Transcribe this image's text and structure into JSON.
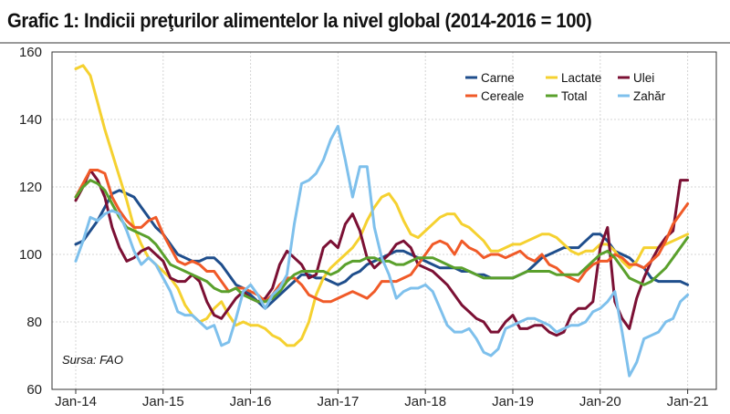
{
  "title": "Grafic 1: Indicii preţurilor alimentelor la nivel global (2014-2016 = 100)",
  "source": "Sursa: FAO",
  "chart_data": {
    "type": "line",
    "x_range": [
      0,
      84
    ],
    "x_ticks": [
      {
        "label": "Jan-14",
        "value": 0
      },
      {
        "label": "Jan-15",
        "value": 12
      },
      {
        "label": "Jan-16",
        "value": 24
      },
      {
        "label": "Jan-17",
        "value": 36
      },
      {
        "label": "Jan-18",
        "value": 48
      },
      {
        "label": "Jan-19",
        "value": 60
      },
      {
        "label": "Jan-20",
        "value": 72
      },
      {
        "label": "Jan-21",
        "value": 84
      }
    ],
    "ylim": [
      60,
      160
    ],
    "y_ticks": [
      60,
      80,
      100,
      120,
      140,
      160
    ],
    "grid": true,
    "legend_position": "top-right",
    "series": [
      {
        "name": "Carne",
        "color": "#1f4e8c",
        "values": [
          103,
          104,
          107,
          110,
          114,
          118,
          119,
          118,
          117,
          114,
          111,
          108,
          106,
          103,
          100,
          99,
          98,
          98,
          99,
          99,
          97,
          94,
          91,
          90,
          88,
          86,
          84,
          86,
          88,
          90,
          92,
          94,
          94,
          93,
          93,
          92,
          91,
          92,
          94,
          95,
          97,
          98,
          99,
          100,
          101,
          101,
          100,
          99,
          98,
          97,
          96,
          96,
          96,
          95,
          95,
          94,
          94,
          93,
          93,
          93,
          93,
          94,
          95,
          97,
          99,
          100,
          101,
          102,
          102,
          102,
          104,
          106,
          106,
          104,
          101,
          100,
          99,
          97,
          96,
          93,
          92,
          92,
          92,
          92,
          91
        ]
      },
      {
        "name": "Lactate",
        "color": "#f5d130",
        "values": [
          155,
          156,
          153,
          145,
          137,
          130,
          123,
          116,
          108,
          103,
          99,
          97,
          95,
          93,
          90,
          85,
          82,
          80,
          81,
          84,
          86,
          82,
          79,
          80,
          79,
          79,
          78,
          76,
          75,
          73,
          73,
          75,
          80,
          88,
          93,
          96,
          98,
          100,
          102,
          105,
          110,
          114,
          117,
          118,
          115,
          110,
          106,
          105,
          107,
          109,
          111,
          112,
          112,
          109,
          108,
          106,
          104,
          101,
          101,
          102,
          103,
          103,
          104,
          105,
          106,
          106,
          105,
          103,
          101,
          100,
          101,
          101,
          103,
          103,
          101,
          98,
          96,
          98,
          102,
          102,
          102,
          103,
          104,
          105,
          106
        ]
      },
      {
        "name": "Ulei",
        "color": "#7b1034",
        "values": [
          116,
          120,
          125,
          122,
          117,
          108,
          102,
          98,
          99,
          101,
          102,
          100,
          98,
          93,
          92,
          92,
          94,
          92,
          86,
          82,
          81,
          84,
          87,
          89,
          87,
          86,
          87,
          90,
          97,
          101,
          99,
          97,
          93,
          94,
          102,
          104,
          102,
          109,
          112,
          107,
          99,
          96,
          98,
          100,
          103,
          104,
          102,
          97,
          96,
          95,
          93,
          91,
          88,
          85,
          83,
          81,
          80,
          77,
          77,
          80,
          82,
          78,
          78,
          79,
          79,
          77,
          76,
          77,
          82,
          84,
          84,
          86,
          102,
          108,
          86,
          81,
          78,
          87,
          93,
          98,
          102,
          105,
          107,
          122,
          122
        ]
      },
      {
        "name": "Cereale",
        "color": "#f05a28",
        "values": [
          117,
          121,
          125,
          125,
          124,
          117,
          113,
          110,
          108,
          108,
          110,
          111,
          106,
          102,
          98,
          97,
          98,
          97,
          95,
          95,
          92,
          89,
          90,
          90,
          89,
          88,
          86,
          88,
          91,
          93,
          93,
          91,
          88,
          87,
          86,
          86,
          87,
          88,
          89,
          88,
          87,
          89,
          92,
          92,
          92,
          93,
          94,
          97,
          100,
          103,
          104,
          103,
          100,
          104,
          102,
          101,
          99,
          100,
          100,
          99,
          100,
          101,
          99,
          98,
          100,
          97,
          96,
          94,
          93,
          92,
          95,
          97,
          98,
          98,
          100,
          99,
          97,
          97,
          96,
          98,
          100,
          104,
          109,
          112,
          115
        ]
      },
      {
        "name": "Total",
        "color": "#5aa02c",
        "values": [
          117,
          120,
          122,
          121,
          119,
          115,
          111,
          108,
          107,
          106,
          105,
          103,
          100,
          97,
          96,
          95,
          94,
          93,
          92,
          90,
          89,
          89,
          90,
          88,
          87,
          86,
          86,
          87,
          89,
          92,
          94,
          95,
          95,
          95,
          95,
          94,
          95,
          97,
          98,
          98,
          99,
          99,
          98,
          98,
          97,
          97,
          98,
          99,
          99,
          99,
          98,
          97,
          96,
          96,
          95,
          94,
          93,
          93,
          93,
          93,
          93,
          94,
          95,
          95,
          95,
          95,
          94,
          94,
          94,
          94,
          96,
          98,
          100,
          101,
          99,
          96,
          93,
          92,
          91,
          92,
          94,
          96,
          99,
          102,
          105
        ]
      },
      {
        "name": "Zahăr",
        "color": "#7ec0ec",
        "values": [
          98,
          104,
          111,
          110,
          112,
          113,
          112,
          107,
          101,
          97,
          99,
          97,
          93,
          89,
          83,
          82,
          82,
          80,
          78,
          79,
          73,
          74,
          81,
          89,
          91,
          88,
          84,
          88,
          90,
          94,
          109,
          121,
          122,
          124,
          128,
          134,
          138,
          128,
          117,
          126,
          126,
          108,
          99,
          94,
          87,
          89,
          90,
          90,
          91,
          89,
          84,
          79,
          77,
          77,
          78,
          75,
          71,
          70,
          72,
          78,
          79,
          80,
          81,
          81,
          80,
          79,
          77,
          78,
          79,
          79,
          80,
          83,
          84,
          86,
          89,
          77,
          64,
          68,
          75,
          76,
          77,
          80,
          81,
          86,
          88
        ]
      }
    ]
  }
}
